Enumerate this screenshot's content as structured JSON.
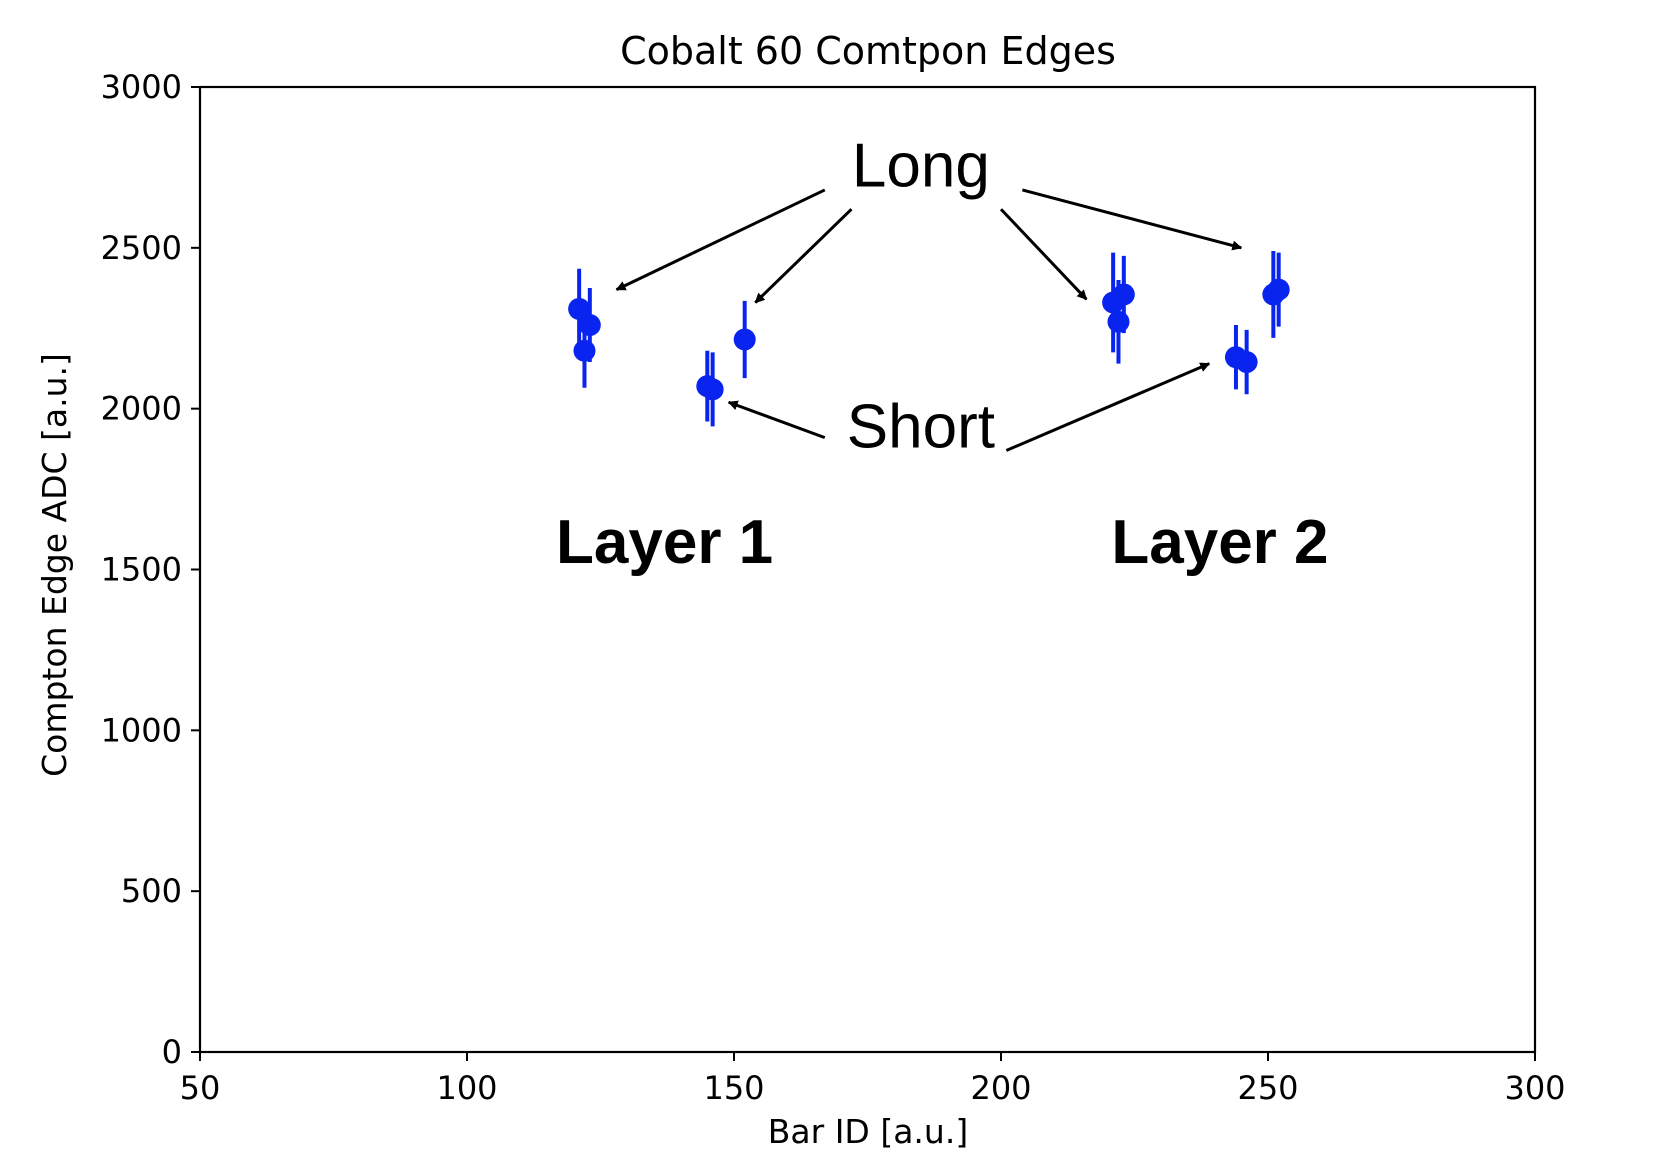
{
  "chart_data": {
    "type": "scatter",
    "title": "Cobalt 60 Comtpon Edges",
    "xlabel": "Bar ID [a.u.]",
    "ylabel": "Compton Edge ADC [a.u.]",
    "xlim": [
      50,
      300
    ],
    "ylim": [
      0,
      3000
    ],
    "xticks": [
      50,
      100,
      150,
      200,
      250,
      300
    ],
    "yticks": [
      0,
      500,
      1000,
      1500,
      2000,
      2500,
      3000
    ],
    "grid": false,
    "marker_color": "#0a24f0",
    "points": [
      {
        "x": 121,
        "y": 2310,
        "yerr": 125
      },
      {
        "x": 123,
        "y": 2260,
        "yerr": 115
      },
      {
        "x": 122,
        "y": 2180,
        "yerr": 115
      },
      {
        "x": 145,
        "y": 2070,
        "yerr": 110
      },
      {
        "x": 146,
        "y": 2060,
        "yerr": 115
      },
      {
        "x": 152,
        "y": 2215,
        "yerr": 120
      },
      {
        "x": 221,
        "y": 2330,
        "yerr": 155
      },
      {
        "x": 223,
        "y": 2355,
        "yerr": 120
      },
      {
        "x": 222,
        "y": 2270,
        "yerr": 130
      },
      {
        "x": 244,
        "y": 2160,
        "yerr": 100
      },
      {
        "x": 246,
        "y": 2145,
        "yerr": 100
      },
      {
        "x": 251,
        "y": 2355,
        "yerr": 135
      },
      {
        "x": 252,
        "y": 2370,
        "yerr": 115
      }
    ],
    "annotations": [
      {
        "text": "Long",
        "style": "large",
        "x": 185,
        "y": 2690,
        "arrows": [
          {
            "from": [
              167,
              2680
            ],
            "to": [
              128,
              2370
            ]
          },
          {
            "from": [
              172,
              2620
            ],
            "to": [
              154,
              2330
            ]
          },
          {
            "from": [
              200,
              2620
            ],
            "to": [
              216,
              2340
            ]
          },
          {
            "from": [
              204,
              2680
            ],
            "to": [
              245,
              2500
            ]
          }
        ]
      },
      {
        "text": "Short",
        "style": "large",
        "x": 185,
        "y": 1880,
        "arrows": [
          {
            "from": [
              167,
              1910
            ],
            "to": [
              149,
              2020
            ]
          },
          {
            "from": [
              201,
              1870
            ],
            "to": [
              239,
              2140
            ]
          }
        ]
      },
      {
        "text": "Layer 1",
        "style": "bold",
        "x": 137,
        "y": 1520,
        "arrows": []
      },
      {
        "text": "Layer 2",
        "style": "bold",
        "x": 241,
        "y": 1520,
        "arrows": []
      }
    ]
  }
}
